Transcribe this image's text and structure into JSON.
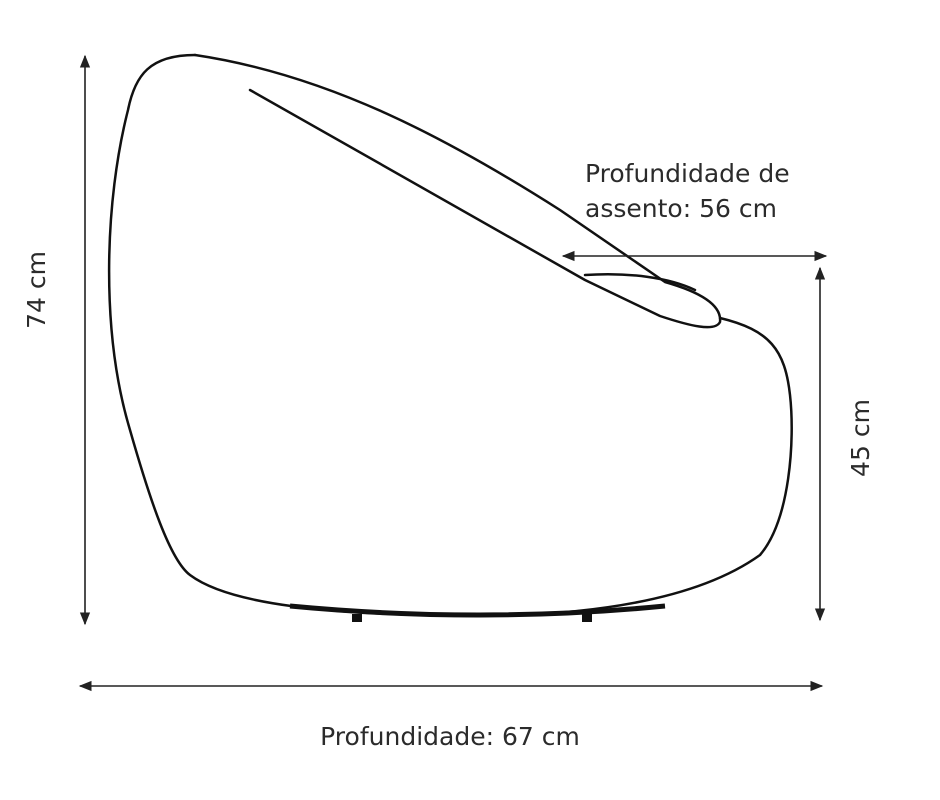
{
  "labels": {
    "height": "74 cm",
    "seat_height": "45 cm",
    "seat_depth": [
      "Profundidade de",
      "assento: 56 cm"
    ],
    "depth": "Profundidade: 67 cm"
  }
}
